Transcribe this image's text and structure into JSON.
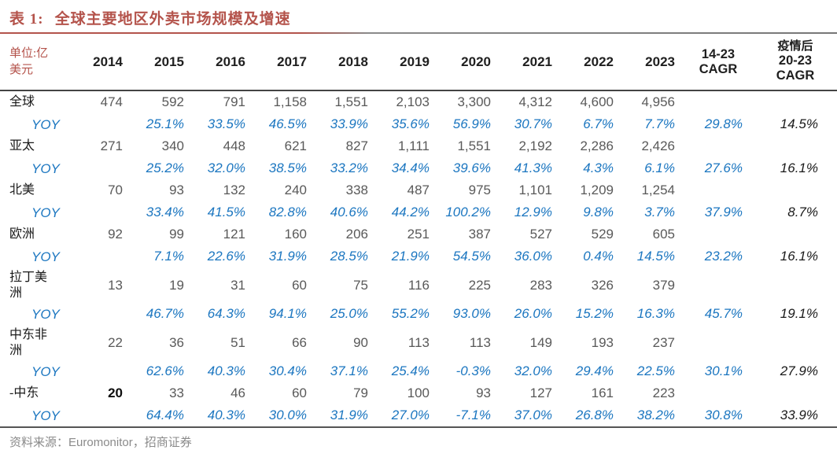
{
  "title": {
    "prefix": "表 1:",
    "text": "全球主要地区外卖市场规模及增速"
  },
  "colors": {
    "title_red": "#b4534b",
    "yoy_blue": "#1b76c0",
    "value_gray": "#595959",
    "header_black": "#1f1f1f",
    "footer_gray": "#8a8a8a"
  },
  "table": {
    "unit_line1": "单位:亿",
    "unit_line2": "美元",
    "year_headers": [
      "2014",
      "2015",
      "2016",
      "2017",
      "2018",
      "2019",
      "2020",
      "2021",
      "2022",
      "2023"
    ],
    "cagr_line1": "14-23",
    "cagr_line2": "CAGR",
    "post_line1": "疫情后",
    "post_line2": "20-23",
    "post_line3": "CAGR",
    "rows": [
      {
        "type": "value",
        "label": "全球",
        "cells": [
          "474",
          "592",
          "791",
          "1,158",
          "1,551",
          "2,103",
          "3,300",
          "4,312",
          "4,600",
          "4,956",
          "",
          ""
        ]
      },
      {
        "type": "yoy",
        "label": "YOY",
        "cells": [
          "",
          "25.1%",
          "33.5%",
          "46.5%",
          "33.9%",
          "35.6%",
          "56.9%",
          "30.7%",
          "6.7%",
          "7.7%",
          "29.8%",
          "14.5%"
        ]
      },
      {
        "type": "value",
        "label": "亚太",
        "cells": [
          "271",
          "340",
          "448",
          "621",
          "827",
          "1,111",
          "1,551",
          "2,192",
          "2,286",
          "2,426",
          "",
          ""
        ]
      },
      {
        "type": "yoy",
        "label": "YOY",
        "cells": [
          "",
          "25.2%",
          "32.0%",
          "38.5%",
          "33.2%",
          "34.4%",
          "39.6%",
          "41.3%",
          "4.3%",
          "6.1%",
          "27.6%",
          "16.1%"
        ]
      },
      {
        "type": "value",
        "label": "北美",
        "cells": [
          "70",
          "93",
          "132",
          "240",
          "338",
          "487",
          "975",
          "1,101",
          "1,209",
          "1,254",
          "",
          ""
        ]
      },
      {
        "type": "yoy",
        "label": "YOY",
        "cells": [
          "",
          "33.4%",
          "41.5%",
          "82.8%",
          "40.6%",
          "44.2%",
          "100.2%",
          "12.9%",
          "9.8%",
          "3.7%",
          "37.9%",
          "8.7%"
        ]
      },
      {
        "type": "value",
        "label": "欧洲",
        "cells": [
          "92",
          "99",
          "121",
          "160",
          "206",
          "251",
          "387",
          "527",
          "529",
          "605",
          "",
          ""
        ]
      },
      {
        "type": "yoy",
        "label": "YOY",
        "cells": [
          "",
          "7.1%",
          "22.6%",
          "31.9%",
          "28.5%",
          "21.9%",
          "54.5%",
          "36.0%",
          "0.4%",
          "14.5%",
          "23.2%",
          "16.1%"
        ]
      },
      {
        "type": "value",
        "label": "拉丁美洲",
        "wrap": true,
        "cells": [
          "13",
          "19",
          "31",
          "60",
          "75",
          "116",
          "225",
          "283",
          "326",
          "379",
          "",
          ""
        ]
      },
      {
        "type": "yoy",
        "label": "YOY",
        "cells": [
          "",
          "46.7%",
          "64.3%",
          "94.1%",
          "25.0%",
          "55.2%",
          "93.0%",
          "26.0%",
          "15.2%",
          "16.3%",
          "45.7%",
          "19.1%"
        ]
      },
      {
        "type": "value",
        "label": "中东非洲",
        "wrap": true,
        "cells": [
          "22",
          "36",
          "51",
          "66",
          "90",
          "113",
          "113",
          "149",
          "193",
          "237",
          "",
          ""
        ]
      },
      {
        "type": "yoy",
        "label": "YOY",
        "cells": [
          "",
          "62.6%",
          "40.3%",
          "30.4%",
          "37.1%",
          "25.4%",
          "-0.3%",
          "32.0%",
          "29.4%",
          "22.5%",
          "30.1%",
          "27.9%"
        ]
      },
      {
        "type": "value",
        "label": "-中东",
        "bold_first": true,
        "cells": [
          "20",
          "33",
          "46",
          "60",
          "79",
          "100",
          "93",
          "127",
          "161",
          "223",
          "",
          ""
        ]
      },
      {
        "type": "yoy",
        "label": "YOY",
        "cells": [
          "",
          "64.4%",
          "40.3%",
          "30.0%",
          "31.9%",
          "27.0%",
          "-7.1%",
          "37.0%",
          "26.8%",
          "38.2%",
          "30.8%",
          "33.9%"
        ]
      }
    ]
  },
  "footer": {
    "source_label": "资料来源：",
    "source_text": "Euromonitor，招商证券"
  }
}
